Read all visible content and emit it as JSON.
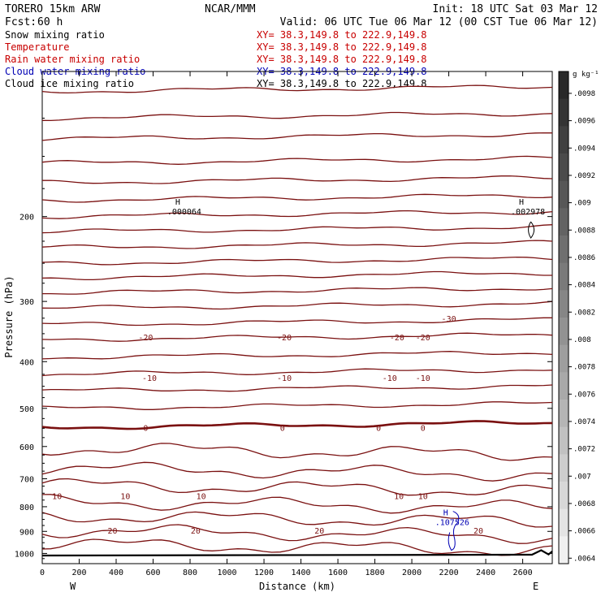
{
  "header": {
    "model": "TORERO  15km ARW",
    "org": "NCAR/MMM",
    "init": "Init: 18 UTC Sat 03 Mar 12",
    "fcst_label": "Fcst:",
    "fcst_value": "60 h",
    "valid": "Valid: 06 UTC Tue 06 Mar 12 (00 CST Tue 06 Mar 12)"
  },
  "fields": [
    {
      "name": "Snow mixing ratio",
      "xy": "XY=  38.3,149.8 to 222.9,149.8",
      "color": "#000000",
      "xy_color": "#c80000"
    },
    {
      "name": "Temperature",
      "xy": "XY=  38.3,149.8 to 222.9,149.8",
      "color": "#c80000",
      "xy_color": "#c80000"
    },
    {
      "name": "Rain water mixing ratio",
      "xy": "XY=  38.3,149.8 to 222.9,149.8",
      "color": "#c80000",
      "xy_color": "#c80000"
    },
    {
      "name": "Cloud water mixing ratio",
      "xy": "XY=  38.3,149.8 to 222.9,149.8",
      "color": "#0000b4",
      "xy_color": "#0000b4"
    },
    {
      "name": "Cloud ice mixing ratio",
      "xy": "XY=  38.3,149.8 to 222.9,149.8",
      "color": "#000000",
      "xy_color": "#000000"
    }
  ],
  "chart_data": {
    "type": "line",
    "title": "",
    "xlabel": "Distance (km)",
    "ylabel": "Pressure (hPa)",
    "xlim": [
      0,
      2760
    ],
    "ylim": [
      1050,
      100
    ],
    "y_scale": "log",
    "x_ticks": [
      0,
      200,
      400,
      600,
      800,
      1000,
      1200,
      1400,
      1600,
      1800,
      2000,
      2200,
      2400,
      2600
    ],
    "y_ticks": [
      200,
      300,
      400,
      500,
      600,
      700,
      800,
      900,
      1000
    ],
    "x_end_labels": {
      "left": "W",
      "right": "E"
    },
    "grid": false,
    "temperature_color": "#7a1010",
    "temperature_isotherms": [
      {
        "level": -20,
        "labels_at": [
          560,
          1310,
          1920,
          2060
        ]
      },
      {
        "level": -10,
        "labels_at": [
          580,
          1310,
          1880,
          2060
        ]
      },
      {
        "level": 0,
        "labels_at": [
          560,
          1300,
          1820,
          2060
        ]
      },
      {
        "level": 10,
        "labels_at": [
          80,
          450,
          860,
          1930,
          2060
        ]
      },
      {
        "level": 20,
        "labels_at": [
          380,
          830,
          1500,
          2360
        ]
      }
    ],
    "extra_temperature_labels": [
      {
        "level": -30,
        "x": 2200,
        "y": 325
      }
    ],
    "maxima": [
      {
        "label": "H",
        "value": ".000064",
        "x": 720,
        "y": 195,
        "color": "#000000"
      },
      {
        "label": "H",
        "value": ".002978",
        "x": 2580,
        "y": 195,
        "color": "#000000"
      },
      {
        "label": "H",
        "value": ".107526",
        "x": 2170,
        "y": 860,
        "color": "#0000b4"
      }
    ],
    "colorbar": {
      "unit": "g kg⁻¹",
      "ticks": [
        ".0098",
        ".0096",
        ".0094",
        ".0092",
        ".009",
        ".0088",
        ".0086",
        ".0084",
        ".0082",
        ".008",
        ".0078",
        ".0076",
        ".0074",
        ".0072",
        ".007",
        ".0068",
        ".0066",
        ".0064"
      ]
    },
    "ground_surface": "1010 hPa (flat), rising at eastern edge"
  }
}
